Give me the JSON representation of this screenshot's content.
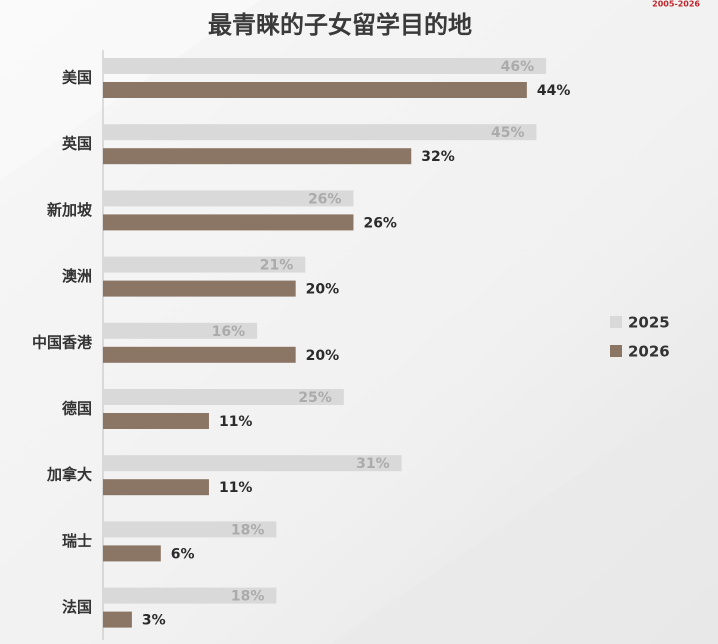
{
  "corner_note": "2005-2026",
  "chart_data": {
    "type": "hbar",
    "title": "最青睐的子女留学目的地",
    "categories": [
      "美国",
      "英国",
      "新加坡",
      "澳洲",
      "中国香港",
      "德国",
      "加拿大",
      "瑞士",
      "法国"
    ],
    "series": [
      {
        "name": "2025",
        "color": "#d9d9d9",
        "label_color": "#ababab",
        "values": [
          46,
          45,
          26,
          21,
          16,
          25,
          31,
          18,
          18
        ],
        "value_labels": [
          "46%",
          "45%",
          "26%",
          "21%",
          "16%",
          "25%",
          "31%",
          "18%",
          "18%"
        ]
      },
      {
        "name": "2026",
        "color": "#8b7565",
        "label_color": "#2b2b2b",
        "values": [
          44,
          32,
          26,
          20,
          20,
          11,
          11,
          6,
          3
        ],
        "value_labels": [
          "44%",
          "32%",
          "26%",
          "20%",
          "20%",
          "11%",
          "11%",
          "6%",
          "3%"
        ]
      }
    ],
    "xlim": [
      0,
      60
    ],
    "legend": "right"
  }
}
